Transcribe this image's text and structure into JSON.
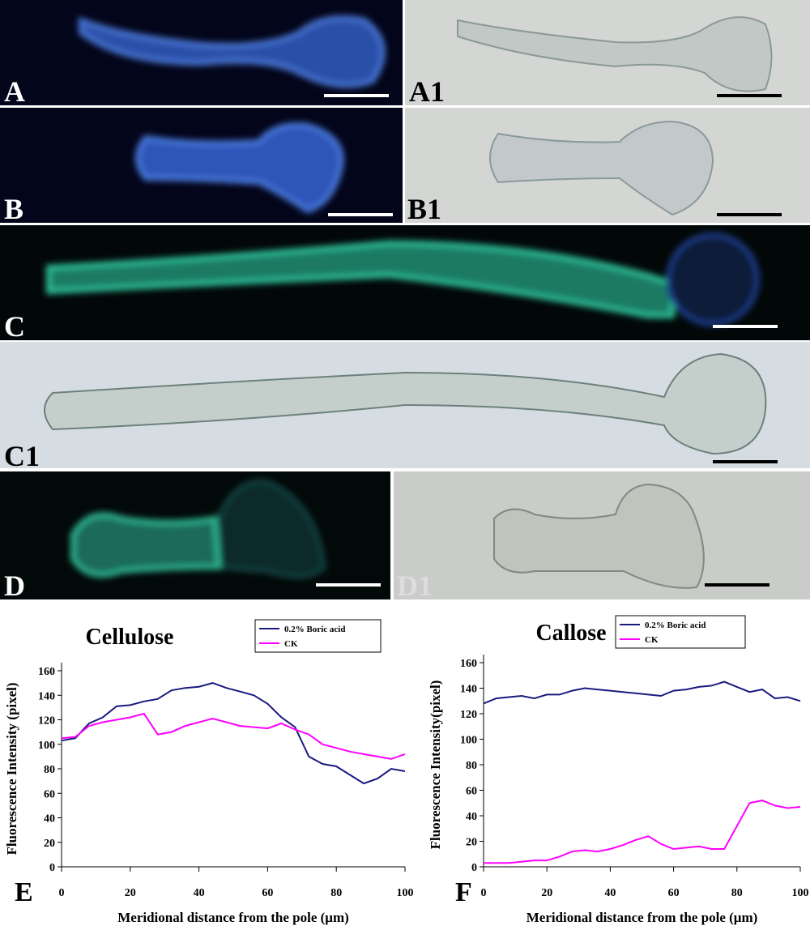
{
  "panels": [
    {
      "label": "A"
    },
    {
      "label": "A1"
    },
    {
      "label": "B"
    },
    {
      "label": "B1"
    },
    {
      "label": "C"
    },
    {
      "label": "C1"
    },
    {
      "label": "D"
    },
    {
      "label": "D1"
    }
  ],
  "chart_data": [
    {
      "type": "line",
      "panel_label": "E",
      "title": "Cellulose",
      "xlabel": "Meridional distance from the pole (μm)",
      "ylabel": "Fluorescence Intensity (pixel)",
      "x": [
        0,
        4,
        8,
        12,
        16,
        20,
        24,
        28,
        32,
        36,
        40,
        44,
        48,
        52,
        56,
        60,
        64,
        68,
        72,
        76,
        80,
        84,
        88,
        92,
        96,
        100
      ],
      "series": [
        {
          "name": "0.2% Boric acid",
          "color": "#1a1a80",
          "values": [
            103,
            105,
            117,
            122,
            131,
            132,
            135,
            137,
            144,
            146,
            147,
            150,
            146,
            143,
            140,
            133,
            122,
            114,
            90,
            84,
            82,
            75,
            68,
            72,
            80,
            78
          ]
        },
        {
          "name": "CK",
          "color": "#ff00ff",
          "values": [
            105,
            106,
            115,
            118,
            120,
            122,
            125,
            108,
            110,
            115,
            118,
            121,
            118,
            115,
            114,
            113,
            117,
            112,
            108,
            100,
            97,
            94,
            92,
            90,
            88,
            92
          ]
        }
      ],
      "xlim": [
        0,
        100
      ],
      "xticks": [
        0,
        20,
        40,
        60,
        80,
        100
      ],
      "ylim": [
        0,
        160
      ],
      "yticks": [
        0,
        20,
        40,
        60,
        80,
        100,
        120,
        140,
        160
      ]
    },
    {
      "type": "line",
      "panel_label": "F",
      "title": "Callose",
      "xlabel": "Meridional distance from the pole (μm)",
      "ylabel": "Fluorescence Intensity(pixel)",
      "x": [
        0,
        4,
        8,
        12,
        16,
        20,
        24,
        28,
        32,
        36,
        40,
        44,
        48,
        52,
        56,
        60,
        64,
        68,
        72,
        76,
        80,
        84,
        88,
        92,
        96,
        100
      ],
      "series": [
        {
          "name": "0.2% Boric acid",
          "color": "#1a1a80",
          "values": [
            128,
            132,
            133,
            134,
            132,
            135,
            135,
            138,
            140,
            139,
            138,
            137,
            136,
            135,
            134,
            138,
            139,
            141,
            142,
            145,
            141,
            137,
            139,
            132,
            133,
            130
          ]
        },
        {
          "name": "CK",
          "color": "#ff00ff",
          "values": [
            3,
            3,
            3,
            4,
            5,
            5,
            8,
            12,
            13,
            12,
            14,
            17,
            21,
            24,
            18,
            14,
            15,
            16,
            14,
            14,
            32,
            50,
            52,
            48,
            46,
            47
          ]
        }
      ],
      "xlim": [
        0,
        100
      ],
      "xticks": [
        0,
        20,
        40,
        60,
        80,
        100
      ],
      "ylim": [
        0,
        160
      ],
      "yticks": [
        0,
        20,
        40,
        60,
        80,
        100,
        120,
        140,
        160
      ]
    }
  ]
}
